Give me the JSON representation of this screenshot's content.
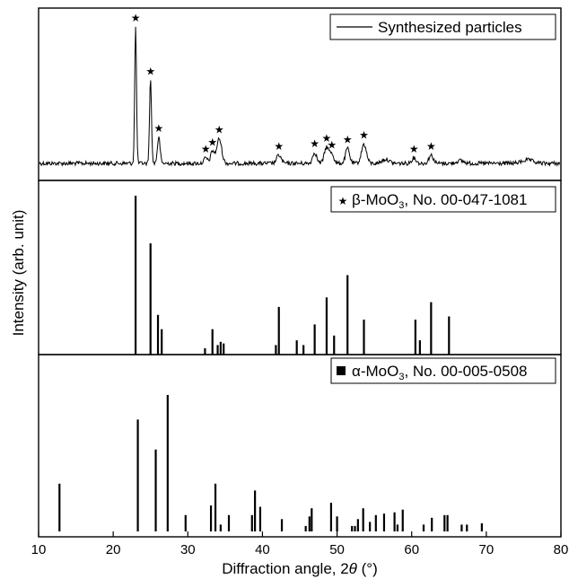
{
  "chart_data": {
    "type": "line",
    "x_label_prefix": "Diffraction angle, 2",
    "x_label_var": "θ",
    "x_label_suffix": " (°)",
    "ylabel": "Intensity (arb. unit)",
    "xlim": [
      10,
      80
    ],
    "x_ticks": [
      "10",
      "20",
      "30",
      "40",
      "50",
      "60",
      "70",
      "80"
    ],
    "panels": [
      {
        "legend_text": "Synthesized particles",
        "legend_marker": "line",
        "peaks": [
          {
            "x": 23.0,
            "h": 1.0,
            "w": 0.2,
            "star": true
          },
          {
            "x": 25.0,
            "h": 0.61,
            "w": 0.22,
            "star": true
          },
          {
            "x": 26.1,
            "h": 0.19,
            "w": 0.3,
            "star": true
          },
          {
            "x": 32.4,
            "h": 0.04,
            "w": 0.4,
            "star": true
          },
          {
            "x": 33.3,
            "h": 0.09,
            "w": 0.4,
            "star": true
          },
          {
            "x": 34.2,
            "h": 0.18,
            "w": 0.55,
            "star": true
          },
          {
            "x": 42.2,
            "h": 0.06,
            "w": 0.5,
            "star": true
          },
          {
            "x": 47.0,
            "h": 0.08,
            "w": 0.45,
            "star": true
          },
          {
            "x": 48.6,
            "h": 0.12,
            "w": 0.5,
            "star": true
          },
          {
            "x": 49.3,
            "h": 0.07,
            "w": 0.45,
            "star": true
          },
          {
            "x": 51.4,
            "h": 0.11,
            "w": 0.45,
            "star": true
          },
          {
            "x": 53.6,
            "h": 0.14,
            "w": 0.55,
            "star": true
          },
          {
            "x": 60.3,
            "h": 0.04,
            "w": 0.5,
            "star": true
          },
          {
            "x": 62.6,
            "h": 0.06,
            "w": 0.5,
            "star": true
          },
          {
            "x": 56.5,
            "h": 0.03,
            "w": 0.8,
            "star": false
          },
          {
            "x": 66.5,
            "h": 0.02,
            "w": 0.8,
            "star": false
          },
          {
            "x": 75.5,
            "h": 0.025,
            "w": 1.2,
            "star": false
          }
        ]
      },
      {
        "legend_marker": "star",
        "legend_prefix": "β-MoO",
        "legend_sub": "3",
        "legend_suffix": ", No. 00-047-1081",
        "sticks": [
          {
            "x": 23.0,
            "h": 100
          },
          {
            "x": 25.0,
            "h": 70
          },
          {
            "x": 26.0,
            "h": 25
          },
          {
            "x": 26.5,
            "h": 16
          },
          {
            "x": 32.3,
            "h": 4
          },
          {
            "x": 33.3,
            "h": 16
          },
          {
            "x": 34.0,
            "h": 6
          },
          {
            "x": 34.4,
            "h": 8
          },
          {
            "x": 34.8,
            "h": 7
          },
          {
            "x": 41.8,
            "h": 6
          },
          {
            "x": 42.2,
            "h": 30
          },
          {
            "x": 44.6,
            "h": 9
          },
          {
            "x": 45.5,
            "h": 6
          },
          {
            "x": 47.0,
            "h": 19
          },
          {
            "x": 48.6,
            "h": 36
          },
          {
            "x": 49.6,
            "h": 12
          },
          {
            "x": 51.4,
            "h": 50
          },
          {
            "x": 53.6,
            "h": 22
          },
          {
            "x": 60.5,
            "h": 22
          },
          {
            "x": 61.1,
            "h": 9
          },
          {
            "x": 62.6,
            "h": 33
          },
          {
            "x": 65.0,
            "h": 24
          }
        ]
      },
      {
        "legend_marker": "square",
        "legend_prefix": "α-MoO",
        "legend_sub": "3",
        "legend_suffix": ", No. 00-005-0508",
        "sticks": [
          {
            "x": 12.8,
            "h": 35
          },
          {
            "x": 23.3,
            "h": 82
          },
          {
            "x": 25.7,
            "h": 60
          },
          {
            "x": 27.3,
            "h": 100
          },
          {
            "x": 29.7,
            "h": 12
          },
          {
            "x": 33.1,
            "h": 19
          },
          {
            "x": 33.7,
            "h": 35
          },
          {
            "x": 34.4,
            "h": 5
          },
          {
            "x": 35.5,
            "h": 12
          },
          {
            "x": 38.6,
            "h": 12
          },
          {
            "x": 39.0,
            "h": 30
          },
          {
            "x": 39.7,
            "h": 18
          },
          {
            "x": 42.6,
            "h": 9
          },
          {
            "x": 45.8,
            "h": 4
          },
          {
            "x": 46.3,
            "h": 11
          },
          {
            "x": 46.6,
            "h": 17
          },
          {
            "x": 49.2,
            "h": 21
          },
          {
            "x": 50.0,
            "h": 11
          },
          {
            "x": 52.0,
            "h": 4
          },
          {
            "x": 52.4,
            "h": 4
          },
          {
            "x": 52.8,
            "h": 9
          },
          {
            "x": 53.5,
            "h": 17
          },
          {
            "x": 54.4,
            "h": 7
          },
          {
            "x": 55.2,
            "h": 12
          },
          {
            "x": 56.3,
            "h": 13
          },
          {
            "x": 57.7,
            "h": 14
          },
          {
            "x": 58.1,
            "h": 5
          },
          {
            "x": 58.8,
            "h": 16
          },
          {
            "x": 61.6,
            "h": 5
          },
          {
            "x": 62.7,
            "h": 10
          },
          {
            "x": 64.4,
            "h": 12
          },
          {
            "x": 64.8,
            "h": 12
          },
          {
            "x": 66.7,
            "h": 5
          },
          {
            "x": 67.4,
            "h": 5
          },
          {
            "x": 69.4,
            "h": 6
          }
        ]
      }
    ]
  }
}
